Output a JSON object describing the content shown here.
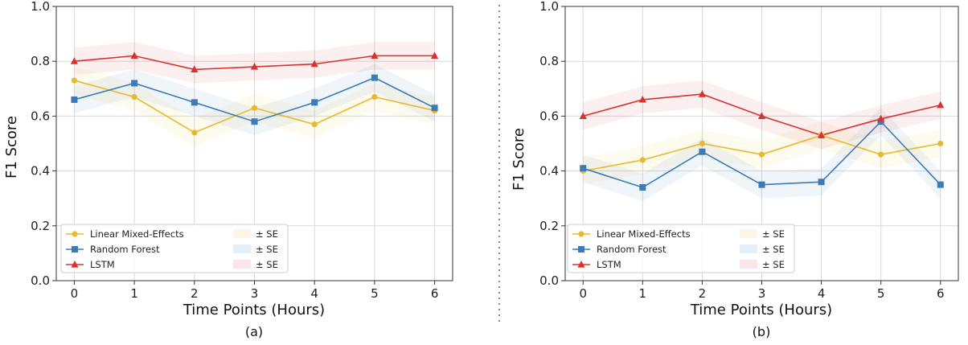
{
  "colors": {
    "lme": "#e8b92a",
    "rf": "#3c7bb8",
    "lstm": "#d8322e",
    "grid": "#d9d9d9",
    "divider": "#888888"
  },
  "chart_data": [
    {
      "type": "line",
      "caption": "(a)",
      "xlabel": "Time Points (Hours)",
      "ylabel": "F1 Score",
      "x": [
        0,
        1,
        2,
        3,
        4,
        5,
        6
      ],
      "xlim": [
        -0.3,
        6.3
      ],
      "ylim": [
        0.0,
        1.0
      ],
      "yticks": [
        "0.0",
        "0.2",
        "0.4",
        "0.6",
        "0.8",
        "1.0"
      ],
      "grid": true,
      "legend_position": "bottom-left",
      "series": [
        {
          "key": "lme",
          "name": "Linear Mixed-Effects",
          "band_label": "± SE",
          "marker": "circle",
          "values": [
            0.73,
            0.67,
            0.54,
            0.63,
            0.57,
            0.67,
            0.62
          ],
          "se": 0.05
        },
        {
          "key": "rf",
          "name": "Random Forest",
          "band_label": "± SE",
          "marker": "square",
          "values": [
            0.66,
            0.72,
            0.65,
            0.58,
            0.65,
            0.74,
            0.63
          ],
          "se": 0.05
        },
        {
          "key": "lstm",
          "name": "LSTM",
          "band_label": "± SE",
          "marker": "triangle",
          "values": [
            0.8,
            0.82,
            0.77,
            0.78,
            0.79,
            0.82,
            0.82
          ],
          "se": 0.05
        }
      ]
    },
    {
      "type": "line",
      "caption": "(b)",
      "xlabel": "Time Points (Hours)",
      "ylabel": "F1 Score",
      "x": [
        0,
        1,
        2,
        3,
        4,
        5,
        6
      ],
      "xlim": [
        -0.3,
        6.3
      ],
      "ylim": [
        0.0,
        1.0
      ],
      "yticks": [
        "0.0",
        "0.2",
        "0.4",
        "0.6",
        "0.8",
        "1.0"
      ],
      "grid": true,
      "legend_position": "bottom-left",
      "series": [
        {
          "key": "lme",
          "name": "Linear Mixed-Effects",
          "band_label": "± SE",
          "marker": "circle",
          "values": [
            0.4,
            0.44,
            0.5,
            0.46,
            0.53,
            0.46,
            0.5
          ],
          "se": 0.05
        },
        {
          "key": "rf",
          "name": "Random Forest",
          "band_label": "± SE",
          "marker": "square",
          "values": [
            0.41,
            0.34,
            0.47,
            0.35,
            0.36,
            0.58,
            0.35
          ],
          "se": 0.05
        },
        {
          "key": "lstm",
          "name": "LSTM",
          "band_label": "± SE",
          "marker": "triangle",
          "values": [
            0.6,
            0.66,
            0.68,
            0.6,
            0.53,
            0.59,
            0.64
          ],
          "se": 0.05
        }
      ]
    }
  ]
}
